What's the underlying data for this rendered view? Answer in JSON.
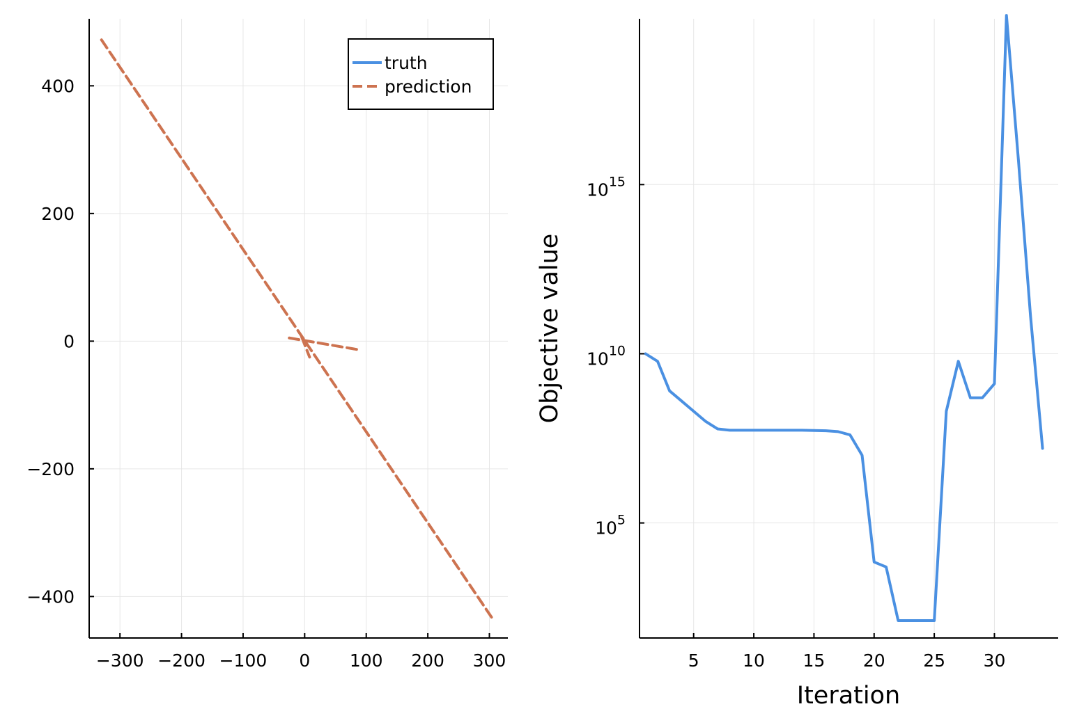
{
  "chart_data": [
    {
      "type": "line",
      "title": "",
      "xlabel": "",
      "ylabel": "",
      "xlim": [
        -350,
        330
      ],
      "ylim": [
        -465,
        505
      ],
      "grid": true,
      "legend_position": "top-right",
      "x_ticks": [
        -300,
        -200,
        -100,
        0,
        100,
        200,
        300
      ],
      "x_tick_labels": [
        "−300",
        "−200",
        "−100",
        "0",
        "100",
        "200",
        "300"
      ],
      "y_ticks": [
        -400,
        -200,
        0,
        200,
        400
      ],
      "y_tick_labels": [
        "−400",
        "−200",
        "0",
        "200",
        "400"
      ],
      "series": [
        {
          "name": "truth",
          "color": "#4a90e2",
          "style": "solid",
          "x": [],
          "y": []
        },
        {
          "name": "prediction",
          "color": "#cd7350",
          "style": "dashed",
          "segments": [
            {
              "x": [
                -330,
                306
              ],
              "y": [
                472,
                -436
              ]
            },
            {
              "x": [
                -25,
                85
              ],
              "y": [
                5,
                -13
              ]
            },
            {
              "x": [
                -5,
                8
              ],
              "y": [
                7,
                -25
              ]
            }
          ]
        }
      ]
    },
    {
      "type": "line",
      "title": "",
      "xlabel": "Iteration",
      "ylabel": "Objective value",
      "xlim": [
        0.5,
        35.3
      ],
      "ylog_range": [
        1.6,
        19.9
      ],
      "y_scale": "log",
      "grid": true,
      "x_ticks": [
        5,
        10,
        15,
        20,
        25,
        30
      ],
      "x_tick_labels": [
        "5",
        "10",
        "15",
        "20",
        "25",
        "30"
      ],
      "y_ticks": [
        {
          "exp": 5,
          "base": "10",
          "power": "5"
        },
        {
          "exp": 10,
          "base": "10",
          "power": "10"
        },
        {
          "exp": 15,
          "base": "10",
          "power": "15"
        }
      ],
      "series": [
        {
          "name": "",
          "color": "#4a90e2",
          "x": [
            1,
            2,
            3,
            4,
            5,
            6,
            7,
            8,
            9,
            10,
            11,
            12,
            13,
            14,
            15,
            16,
            17,
            18,
            19,
            20,
            21,
            22,
            23,
            24,
            25,
            26,
            27,
            28,
            29,
            30,
            31,
            32,
            33,
            34
          ],
          "y": [
            "1e10",
            "6e9",
            "8e8",
            "4e8",
            "2e8",
            "1e8",
            "6e7",
            "5.5e7",
            "5.5e7",
            "5.5e7",
            "5.5e7",
            "5.5e7",
            "5.5e7",
            "5.5e7",
            "5.4e7",
            "5.3e7",
            "5e7",
            "4e7",
            "1e7",
            "7e3",
            "5e3",
            "1.3e2",
            "1.3e2",
            "1.3e2",
            "1.3e2",
            "2e8",
            "6e9",
            "5e8",
            "5e8",
            "1.3e9",
            "1e20",
            "5e15",
            "1.3e11",
            "1.6e7"
          ]
        }
      ]
    }
  ]
}
